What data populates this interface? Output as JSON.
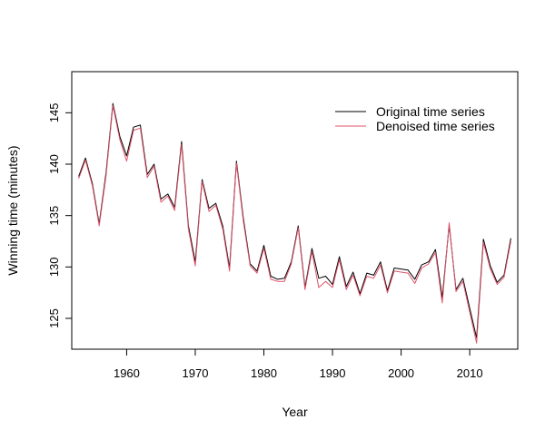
{
  "chart_data": {
    "type": "line",
    "title": "",
    "xlabel": "Year",
    "ylabel": "Winning time (minutes)",
    "xlim": [
      1952,
      2017
    ],
    "ylim": [
      122,
      149
    ],
    "x_ticks": [
      1960,
      1970,
      1980,
      1990,
      2000,
      2010
    ],
    "y_ticks": [
      125,
      130,
      135,
      140,
      145
    ],
    "grid": false,
    "legend_position": "top-right",
    "x": [
      1953,
      1954,
      1955,
      1956,
      1957,
      1958,
      1959,
      1960,
      1961,
      1962,
      1963,
      1964,
      1965,
      1966,
      1967,
      1968,
      1969,
      1970,
      1971,
      1972,
      1973,
      1974,
      1975,
      1976,
      1977,
      1978,
      1979,
      1980,
      1981,
      1982,
      1983,
      1984,
      1985,
      1986,
      1987,
      1988,
      1989,
      1990,
      1991,
      1992,
      1993,
      1994,
      1995,
      1996,
      1997,
      1998,
      1999,
      2000,
      2001,
      2002,
      2003,
      2004,
      2005,
      2006,
      2007,
      2008,
      2009,
      2010,
      2011,
      2012,
      2013,
      2014,
      2015,
      2016
    ],
    "series": [
      {
        "name": "Original time series",
        "color": "#000000",
        "values": [
          138.8,
          140.6,
          138.1,
          134.2,
          139.2,
          145.9,
          142.7,
          140.8,
          143.6,
          143.8,
          139.0,
          140.0,
          136.6,
          137.1,
          135.8,
          142.2,
          134.0,
          130.5,
          138.5,
          135.7,
          136.2,
          134.0,
          129.9,
          140.3,
          134.8,
          130.3,
          129.6,
          132.1,
          129.1,
          128.8,
          128.9,
          130.5,
          134.0,
          128.0,
          131.8,
          128.9,
          129.1,
          128.3,
          131.0,
          128.1,
          129.5,
          127.4,
          129.4,
          129.2,
          130.5,
          127.7,
          129.9,
          129.8,
          129.7,
          128.8,
          130.2,
          130.5,
          131.7,
          127.0,
          134.1,
          127.8,
          128.9,
          126.0,
          123.1,
          132.7,
          130.1,
          128.5,
          129.2,
          132.8
        ]
      },
      {
        "name": "Denoised time series",
        "color": "#DF536B",
        "values": [
          138.6,
          140.4,
          137.9,
          134.0,
          138.9,
          145.7,
          142.4,
          140.3,
          143.3,
          143.5,
          138.7,
          139.8,
          136.3,
          136.9,
          135.5,
          141.9,
          133.7,
          130.1,
          138.3,
          135.4,
          136.0,
          133.7,
          129.6,
          140.1,
          134.5,
          130.1,
          129.4,
          131.8,
          128.8,
          128.6,
          128.6,
          130.3,
          133.8,
          127.8,
          131.5,
          128.0,
          128.6,
          128.0,
          130.7,
          127.8,
          129.2,
          127.2,
          129.1,
          128.9,
          130.2,
          127.5,
          129.6,
          129.5,
          129.4,
          128.4,
          129.9,
          130.3,
          131.4,
          126.5,
          134.3,
          127.6,
          128.6,
          125.6,
          122.6,
          132.4,
          129.8,
          128.3,
          129.0,
          132.5
        ]
      }
    ]
  }
}
